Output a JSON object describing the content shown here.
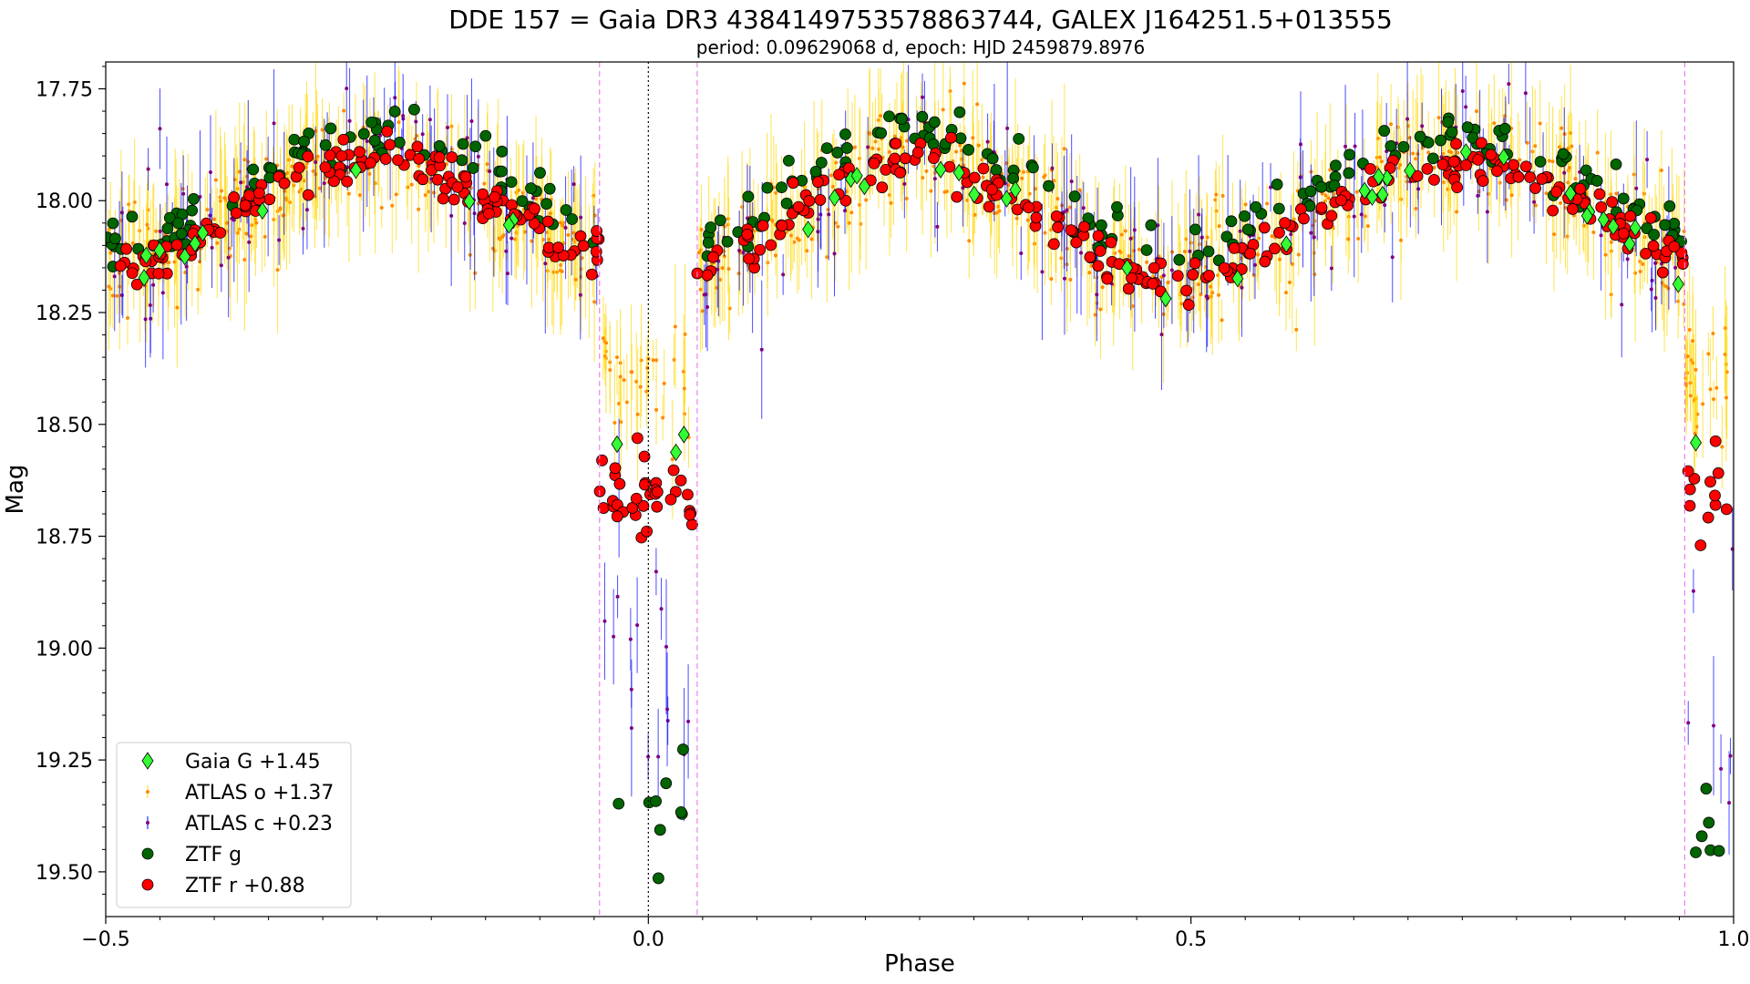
{
  "chart_data": {
    "type": "scatter",
    "title": "DDE 157 = Gaia DR3 4384149753578863744, GALEX J164251.5+013555",
    "subtitle": "period: 0.09629068 d, epoch: HJD 2459879.8976",
    "xlabel": "Phase",
    "ylabel": "Mag",
    "xlim": [
      -0.5,
      1.0
    ],
    "ylim": [
      19.6,
      17.69
    ],
    "y_inverted": true,
    "grid": false,
    "legend_position": "lower-left",
    "x_ticks": [
      "-0.5",
      "0.0",
      "0.5",
      "1.0"
    ],
    "x_ticks_display": [
      "−0.5",
      "0.0",
      "0.5",
      "1.0"
    ],
    "x_tick_values": [
      -0.5,
      0.0,
      0.5,
      1.0
    ],
    "y_ticks": [
      "17.75",
      "18.00",
      "18.25",
      "18.50",
      "18.75",
      "19.00",
      "19.25",
      "19.50"
    ],
    "y_tick_values": [
      17.75,
      18.0,
      18.25,
      18.5,
      18.75,
      19.0,
      19.25,
      19.5
    ],
    "vlines": [
      {
        "x": 0.0,
        "color": "#000000",
        "style": "dotted"
      },
      {
        "x": -0.045,
        "color": "#ee82ee",
        "style": "dashed"
      },
      {
        "x": 0.045,
        "color": "#ee82ee",
        "style": "dashed"
      },
      {
        "x": 0.955,
        "color": "#ee82ee",
        "style": "dashed"
      }
    ],
    "model": {
      "baseline": 17.86,
      "secondary_depth": 0.28,
      "primary_plateau_offset": 0.57,
      "eclipse_half_width": 0.045
    },
    "series": [
      {
        "name": "Gaia G +1.45",
        "marker": "diamond",
        "color": "#33ff33",
        "edge": "#000000",
        "offset_from_base": 0.06,
        "scatter": 0.02,
        "count": 45
      },
      {
        "name": "ATLAS o +1.37",
        "marker": "dot-errorbar",
        "color": "#ff8c00",
        "bar_color": "#ffd700",
        "offset_from_base": 0.04,
        "scatter": 0.06,
        "count": 900
      },
      {
        "name": "ATLAS c +0.23",
        "marker": "dot-errorbar",
        "color": "#800080",
        "bar_color": "#0000ff",
        "offset_from_base": 0.03,
        "scatter": 0.08,
        "count": 260
      },
      {
        "name": "ZTF g",
        "marker": "circle",
        "color": "#006400",
        "edge": "#000000",
        "offset_from_base": -0.01,
        "scatter": 0.03,
        "count": 260
      },
      {
        "name": "ZTF r +0.88",
        "marker": "circle",
        "color": "#ff0000",
        "edge": "#000000",
        "offset_from_base": 0.05,
        "scatter": 0.025,
        "count": 420
      }
    ]
  }
}
